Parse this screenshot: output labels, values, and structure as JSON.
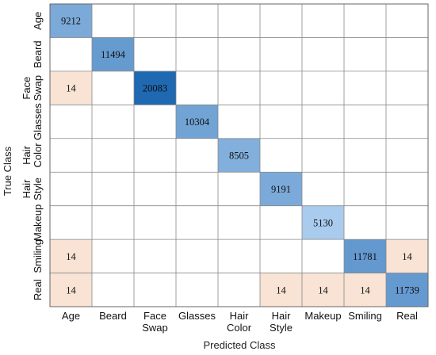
{
  "chart_data": {
    "type": "heatmap",
    "title": "",
    "xlabel": "Predicted Class",
    "ylabel": "True Class",
    "x_categories": [
      [
        "Age"
      ],
      [
        "Beard"
      ],
      [
        "Face",
        "Swap"
      ],
      [
        "Glasses"
      ],
      [
        "Hair",
        "Color"
      ],
      [
        "Hair",
        "Style"
      ],
      [
        "Makeup"
      ],
      [
        "Smiling"
      ],
      [
        "Real"
      ]
    ],
    "y_categories": [
      [
        "Age"
      ],
      [
        "Beard"
      ],
      [
        "Face",
        "Swap"
      ],
      [
        "Glasses"
      ],
      [
        "Hair",
        "Color"
      ],
      [
        "Hair",
        "Style"
      ],
      [
        "Makeup"
      ],
      [
        "Smiling"
      ],
      [
        "Real"
      ]
    ],
    "cells": [
      {
        "row": 0,
        "col": 0,
        "value": 9212
      },
      {
        "row": 1,
        "col": 1,
        "value": 11494
      },
      {
        "row": 2,
        "col": 0,
        "value": 14
      },
      {
        "row": 2,
        "col": 2,
        "value": 20083
      },
      {
        "row": 3,
        "col": 3,
        "value": 10304
      },
      {
        "row": 4,
        "col": 4,
        "value": 8505
      },
      {
        "row": 5,
        "col": 5,
        "value": 9191
      },
      {
        "row": 6,
        "col": 6,
        "value": 5130
      },
      {
        "row": 7,
        "col": 0,
        "value": 14
      },
      {
        "row": 7,
        "col": 7,
        "value": 11781
      },
      {
        "row": 7,
        "col": 8,
        "value": 14
      },
      {
        "row": 8,
        "col": 0,
        "value": 14
      },
      {
        "row": 8,
        "col": 5,
        "value": 14
      },
      {
        "row": 8,
        "col": 6,
        "value": 14
      },
      {
        "row": 8,
        "col": 7,
        "value": 14
      },
      {
        "row": 8,
        "col": 8,
        "value": 11739
      }
    ],
    "colors": {
      "correct_light": "#a9cbed",
      "correct_dark": "#1f68b2",
      "error": "#f8e3d4",
      "grid": "#888888",
      "border": "#666666"
    }
  }
}
